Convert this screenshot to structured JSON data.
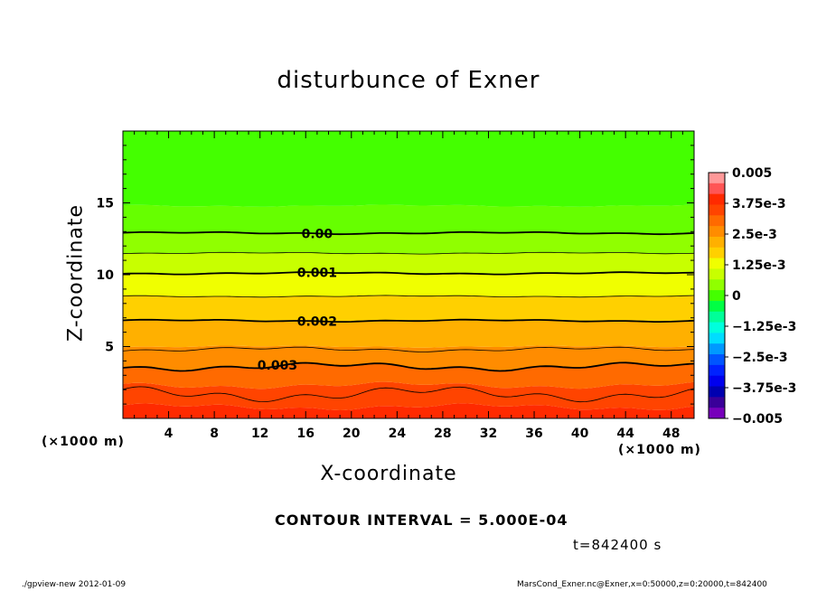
{
  "chart_data": {
    "type": "heatmap",
    "title": "disturbunce of Exner",
    "xlabel": "X-coordinate",
    "ylabel": "Z-coordinate",
    "x_units": "(×1000 m)",
    "z_units": "(×1000 m)",
    "xlim": [
      0,
      50
    ],
    "ylim": [
      0,
      20
    ],
    "x_ticks": [
      4,
      8,
      12,
      16,
      20,
      24,
      28,
      32,
      36,
      40,
      44,
      48
    ],
    "y_ticks": [
      5,
      10,
      15
    ],
    "contour_interval_text": "CONTOUR INTERVAL = 5.000E-04",
    "time_text": "t=842400 s",
    "contours": [
      {
        "label": "0.00",
        "level": 0.0,
        "z": 12.9
      },
      {
        "label": "0.001",
        "level": 0.001,
        "z": 10.1
      },
      {
        "label": "0.002",
        "level": 0.002,
        "z": 6.8
      },
      {
        "label": "0.003",
        "level": 0.003,
        "z": 3.6
      }
    ],
    "colorbar": {
      "labels": [
        "0.005",
        "3.75e-3",
        "2.5e-3",
        "1.25e-3",
        "0",
        "−1.25e-3",
        "−2.5e-3",
        "−3.75e-3",
        "−0.005"
      ],
      "min": -0.005,
      "max": 0.005,
      "colors": [
        "#ff9999",
        "#ff5555",
        "#ff2a00",
        "#ff4400",
        "#ff6a00",
        "#ff8c00",
        "#ffb000",
        "#ffd000",
        "#f0ff00",
        "#c8ff00",
        "#90ff00",
        "#44ff00",
        "#00ff44",
        "#00ff99",
        "#00ffdd",
        "#00ddff",
        "#0099ff",
        "#0055ff",
        "#0022ff",
        "#0000ee",
        "#0000b0",
        "#3a0099",
        "#7700bb"
      ]
    },
    "field_bands": [
      {
        "from_z": 0.0,
        "to_z": 0.8,
        "color": "#ff2a00"
      },
      {
        "from_z": 0.8,
        "to_z": 2.3,
        "color": "#ff4400"
      },
      {
        "from_z": 2.3,
        "to_z": 3.6,
        "color": "#ff6a00"
      },
      {
        "from_z": 3.6,
        "to_z": 5.0,
        "color": "#ff8c00"
      },
      {
        "from_z": 5.0,
        "to_z": 6.8,
        "color": "#ffb000"
      },
      {
        "from_z": 6.8,
        "to_z": 8.5,
        "color": "#ffd000"
      },
      {
        "from_z": 8.5,
        "to_z": 10.1,
        "color": "#f0ff00"
      },
      {
        "from_z": 10.1,
        "to_z": 11.5,
        "color": "#c8ff00"
      },
      {
        "from_z": 11.5,
        "to_z": 12.9,
        "color": "#90ff00"
      },
      {
        "from_z": 12.9,
        "to_z": 14.8,
        "color": "#66ff00"
      },
      {
        "from_z": 14.8,
        "to_z": 20.0,
        "color": "#44ff00"
      }
    ]
  },
  "footer": {
    "left": "./gpview-new   2012-01-09",
    "right": "MarsCond_Exner.nc@Exner,x=0:50000,z=0:20000,t=842400"
  }
}
